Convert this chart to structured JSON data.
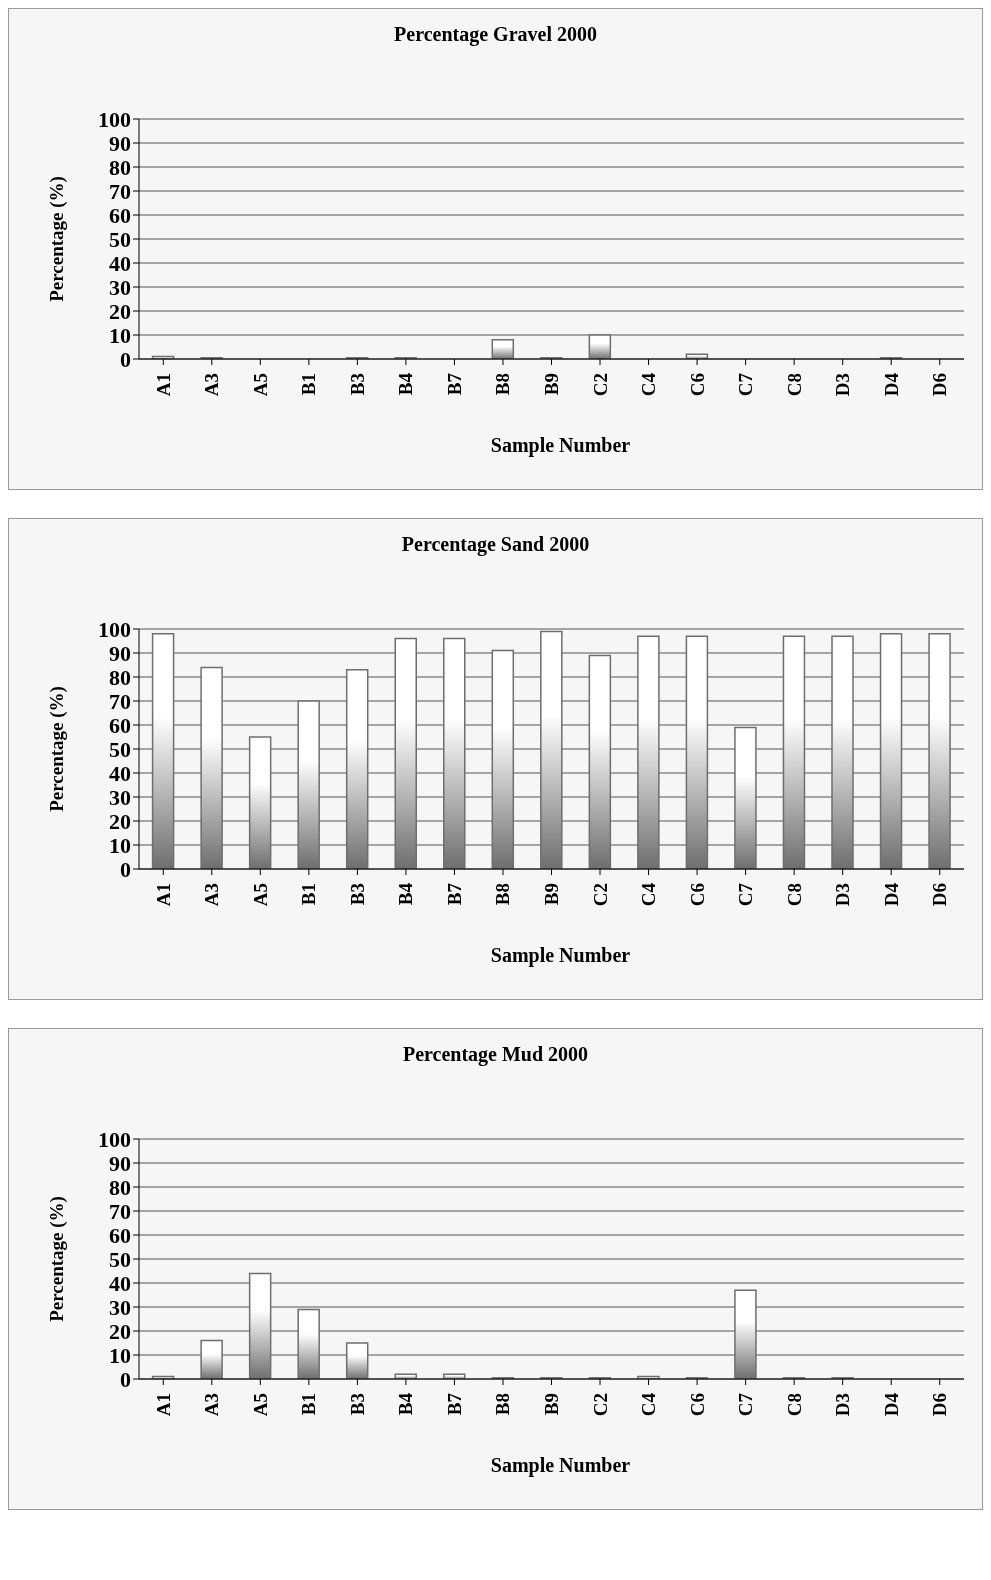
{
  "chart_data": [
    {
      "type": "bar",
      "title": "Percentage Gravel 2000",
      "xlabel": "Sample Number",
      "ylabel": "Percentage (%)",
      "categories": [
        "A1",
        "A3",
        "A5",
        "B1",
        "B3",
        "B4",
        "B7",
        "B8",
        "B9",
        "C2",
        "C4",
        "C6",
        "C7",
        "C8",
        "D3",
        "D4",
        "D6"
      ],
      "values": [
        1,
        0.5,
        0,
        0,
        0.5,
        0.5,
        0,
        8,
        0.5,
        10,
        0,
        2,
        0,
        0,
        0,
        0.5,
        0
      ],
      "color": "#6e6e6e",
      "ylim": [
        0,
        100
      ],
      "yticks": [
        0,
        10,
        20,
        30,
        40,
        50,
        60,
        70,
        80,
        90,
        100
      ],
      "grid": "y",
      "legend": false
    },
    {
      "type": "bar",
      "title": "Percentage Sand 2000",
      "xlabel": "Sample Number",
      "ylabel": "Percentage (%)",
      "categories": [
        "A1",
        "A3",
        "A5",
        "B1",
        "B3",
        "B4",
        "B7",
        "B8",
        "B9",
        "C2",
        "C4",
        "C6",
        "C7",
        "C8",
        "D3",
        "D4",
        "D6"
      ],
      "values": [
        98,
        84,
        55,
        70,
        83,
        96,
        96,
        91,
        99,
        89,
        97,
        97,
        59,
        97,
        97,
        98,
        98
      ],
      "color": "#6e6e6e",
      "ylim": [
        0,
        100
      ],
      "yticks": [
        0,
        10,
        20,
        30,
        40,
        50,
        60,
        70,
        80,
        90,
        100
      ],
      "grid": "y",
      "legend": false
    },
    {
      "type": "bar",
      "title": "Percentage Mud 2000",
      "xlabel": "Sample Number",
      "ylabel": "Percentage (%)",
      "categories": [
        "A1",
        "A3",
        "A5",
        "B1",
        "B3",
        "B4",
        "B7",
        "B8",
        "B9",
        "C2",
        "C4",
        "C6",
        "C7",
        "C8",
        "D3",
        "D4",
        "D6"
      ],
      "values": [
        1,
        16,
        44,
        29,
        15,
        2,
        2,
        0.5,
        0.5,
        0.5,
        1,
        0.5,
        37,
        0.5,
        0.5,
        0,
        0
      ],
      "color": "#6e6e6e",
      "ylim": [
        0,
        100
      ],
      "yticks": [
        0,
        10,
        20,
        30,
        40,
        50,
        60,
        70,
        80,
        90,
        100
      ],
      "grid": "y",
      "legend": false
    }
  ]
}
